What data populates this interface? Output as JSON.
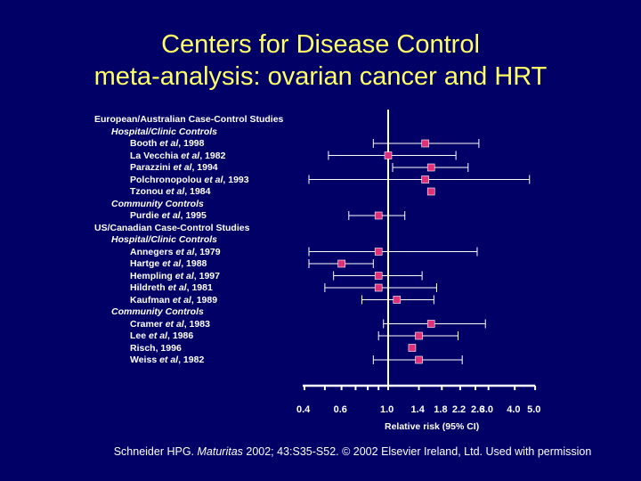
{
  "title_line1": "Centers for Disease Control",
  "title_line2": "meta-analysis: ovarian cancer and HRT",
  "colors": {
    "background": "#000066",
    "title": "#ffff66",
    "marker": "#e0307a",
    "line": "#ffffff"
  },
  "citation": {
    "prefix": "Schneider HPG. ",
    "journal": "Maturitas",
    "suffix": " 2002; 43:S35-S52. © 2002 Elsevier Ireland, Ltd. Used with permission"
  },
  "chart_data": {
    "type": "forest",
    "xlabel": "Relative risk (95% CI)",
    "xscale": "log",
    "xlim": [
      0.4,
      5.0
    ],
    "reference_line": 1.0,
    "tick_values": [
      0.4,
      0.5,
      0.6,
      0.7,
      0.8,
      0.9,
      1.0,
      1.4,
      1.8,
      2.2,
      2.6,
      3.0,
      4.0,
      5.0
    ],
    "tick_labels": [
      "0.4",
      "0.6",
      "1.0",
      "1.4",
      "1.8",
      "2.2",
      "2.6",
      "3.0",
      "4.0",
      "5.0"
    ],
    "rows": [
      {
        "label": "European/Australian Case-Control Studies",
        "kind": "group"
      },
      {
        "label": "Hospital/Clinic Controls",
        "kind": "subgroup"
      },
      {
        "label": "Booth ",
        "etal": "et al",
        "year": ", 1998",
        "kind": "study",
        "rr": 1.5,
        "lo": 0.85,
        "hi": 2.7
      },
      {
        "label": "La Vecchia ",
        "etal": "et al",
        "year": ", 1982",
        "kind": "study",
        "rr": 1.0,
        "lo": 0.52,
        "hi": 2.1
      },
      {
        "label": "Parazzini ",
        "etal": "et al",
        "year": ", 1994",
        "kind": "study",
        "rr": 1.6,
        "lo": 1.05,
        "hi": 2.4
      },
      {
        "label": "Polchronopolou ",
        "etal": "et al",
        "year": ", 1993",
        "kind": "study",
        "rr": 1.5,
        "lo": 0.42,
        "hi": 4.7
      },
      {
        "label": "Tzonou ",
        "etal": "et al",
        "year": ", 1984",
        "kind": "study",
        "rr": 1.6,
        "lo": null,
        "hi": null
      },
      {
        "label": "Community Controls",
        "kind": "subgroup"
      },
      {
        "label": "Purdie ",
        "etal": "et al",
        "year": ", 1995",
        "kind": "study",
        "rr": 0.9,
        "lo": 0.65,
        "hi": 1.2
      },
      {
        "label": "US/Canadian Case-Control Studies",
        "kind": "group"
      },
      {
        "label": "Hospital/Clinic Controls",
        "kind": "subgroup"
      },
      {
        "label": "Annegers ",
        "etal": "et al",
        "year": ", 1979",
        "kind": "study",
        "rr": 0.9,
        "lo": 0.42,
        "hi": 2.65
      },
      {
        "label": "Hartge ",
        "etal": "et al",
        "year": ", 1988",
        "kind": "study",
        "rr": 0.6,
        "lo": 0.42,
        "hi": 0.85
      },
      {
        "label": "Hempling ",
        "etal": "et al",
        "year": ", 1997",
        "kind": "study",
        "rr": 0.9,
        "lo": 0.55,
        "hi": 1.45
      },
      {
        "label": "Hildreth ",
        "etal": "et al",
        "year": ", 1981",
        "kind": "study",
        "rr": 0.9,
        "lo": 0.5,
        "hi": 1.7
      },
      {
        "label": "Kaufman ",
        "etal": "et al",
        "year": ", 1989",
        "kind": "study",
        "rr": 1.1,
        "lo": 0.75,
        "hi": 1.65
      },
      {
        "label": "Community Controls",
        "kind": "subgroup"
      },
      {
        "label": "Cramer ",
        "etal": "et al",
        "year": ", 1983",
        "kind": "study",
        "rr": 1.6,
        "lo": 0.95,
        "hi": 2.9
      },
      {
        "label": "Lee ",
        "etal": "et al",
        "year": ", 1986",
        "kind": "study",
        "rr": 1.4,
        "lo": 0.9,
        "hi": 2.15
      },
      {
        "label": "Risch, 1996",
        "kind": "study",
        "rr": 1.3,
        "lo": null,
        "hi": null
      },
      {
        "label": "Weiss ",
        "etal": "et al",
        "year": ", 1982",
        "kind": "study",
        "rr": 1.4,
        "lo": 0.85,
        "hi": 2.25
      }
    ]
  }
}
